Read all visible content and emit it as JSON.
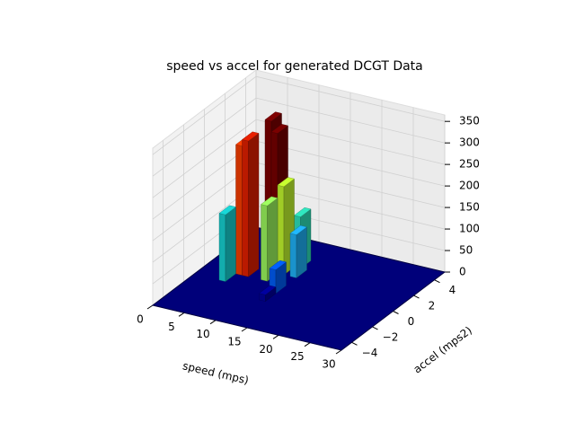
{
  "chart_data": {
    "type": "bar3d",
    "title": "speed vs accel for generated DCGT Data",
    "xlabel": "speed (mps)",
    "ylabel": "accel (mps2)",
    "x": [
      3,
      4,
      5,
      6,
      8,
      9,
      9,
      10,
      11,
      12,
      12,
      12
    ],
    "y": [
      0,
      -1,
      0,
      0,
      1,
      1,
      0,
      1,
      2,
      1,
      -1,
      -2
    ],
    "values": [
      25,
      155,
      300,
      315,
      350,
      325,
      175,
      205,
      120,
      100,
      55,
      15
    ],
    "colors": [
      "#0020c8",
      "#18d8d8",
      "#ff4000",
      "#e82000",
      "#800000",
      "#7a0000",
      "#a0ff60",
      "#c8ff30",
      "#30e8c0",
      "#20b8ff",
      "#0060ff",
      "#0000a0"
    ],
    "xlim": [
      0,
      30
    ],
    "ylim": [
      -5,
      5
    ],
    "zlim": [
      0,
      365
    ],
    "xticks": [
      0,
      5,
      10,
      15,
      20,
      25,
      30
    ],
    "yticks": [
      {
        "value": -4,
        "label": "−4"
      },
      {
        "value": -2,
        "label": "−2"
      },
      0,
      2,
      4
    ],
    "zticks": [
      0,
      50,
      100,
      150,
      200,
      250,
      300,
      350
    ],
    "grid": true
  }
}
